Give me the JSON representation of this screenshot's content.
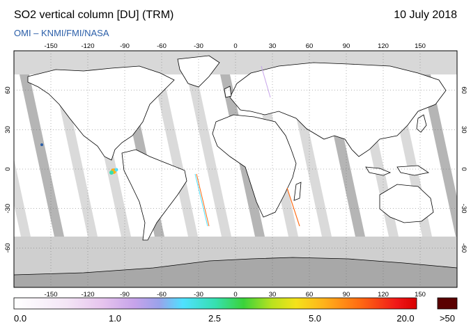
{
  "header": {
    "title": "SO2 vertical column [DU] (TRM)",
    "source": "OMI  –  KNMI/FMI/NASA",
    "date": "10 July 2018"
  },
  "map": {
    "lon_ticks": [
      "-150",
      "-120",
      "-90",
      "-60",
      "-30",
      "0",
      "30",
      "60",
      "90",
      "120",
      "150"
    ],
    "lat_ticks": [
      "60",
      "30",
      "0",
      "-30",
      "-60"
    ],
    "colors": {
      "ocean": "#ffffff",
      "no_data": "#cfcfcf",
      "gap_stripe": "#a8a8a8",
      "coast": "#000000"
    }
  },
  "colorbar": {
    "labels": [
      "0.0",
      "1.0",
      "2.5",
      "5.0",
      "20.0",
      ">50"
    ],
    "over_color": "#5a0000"
  }
}
